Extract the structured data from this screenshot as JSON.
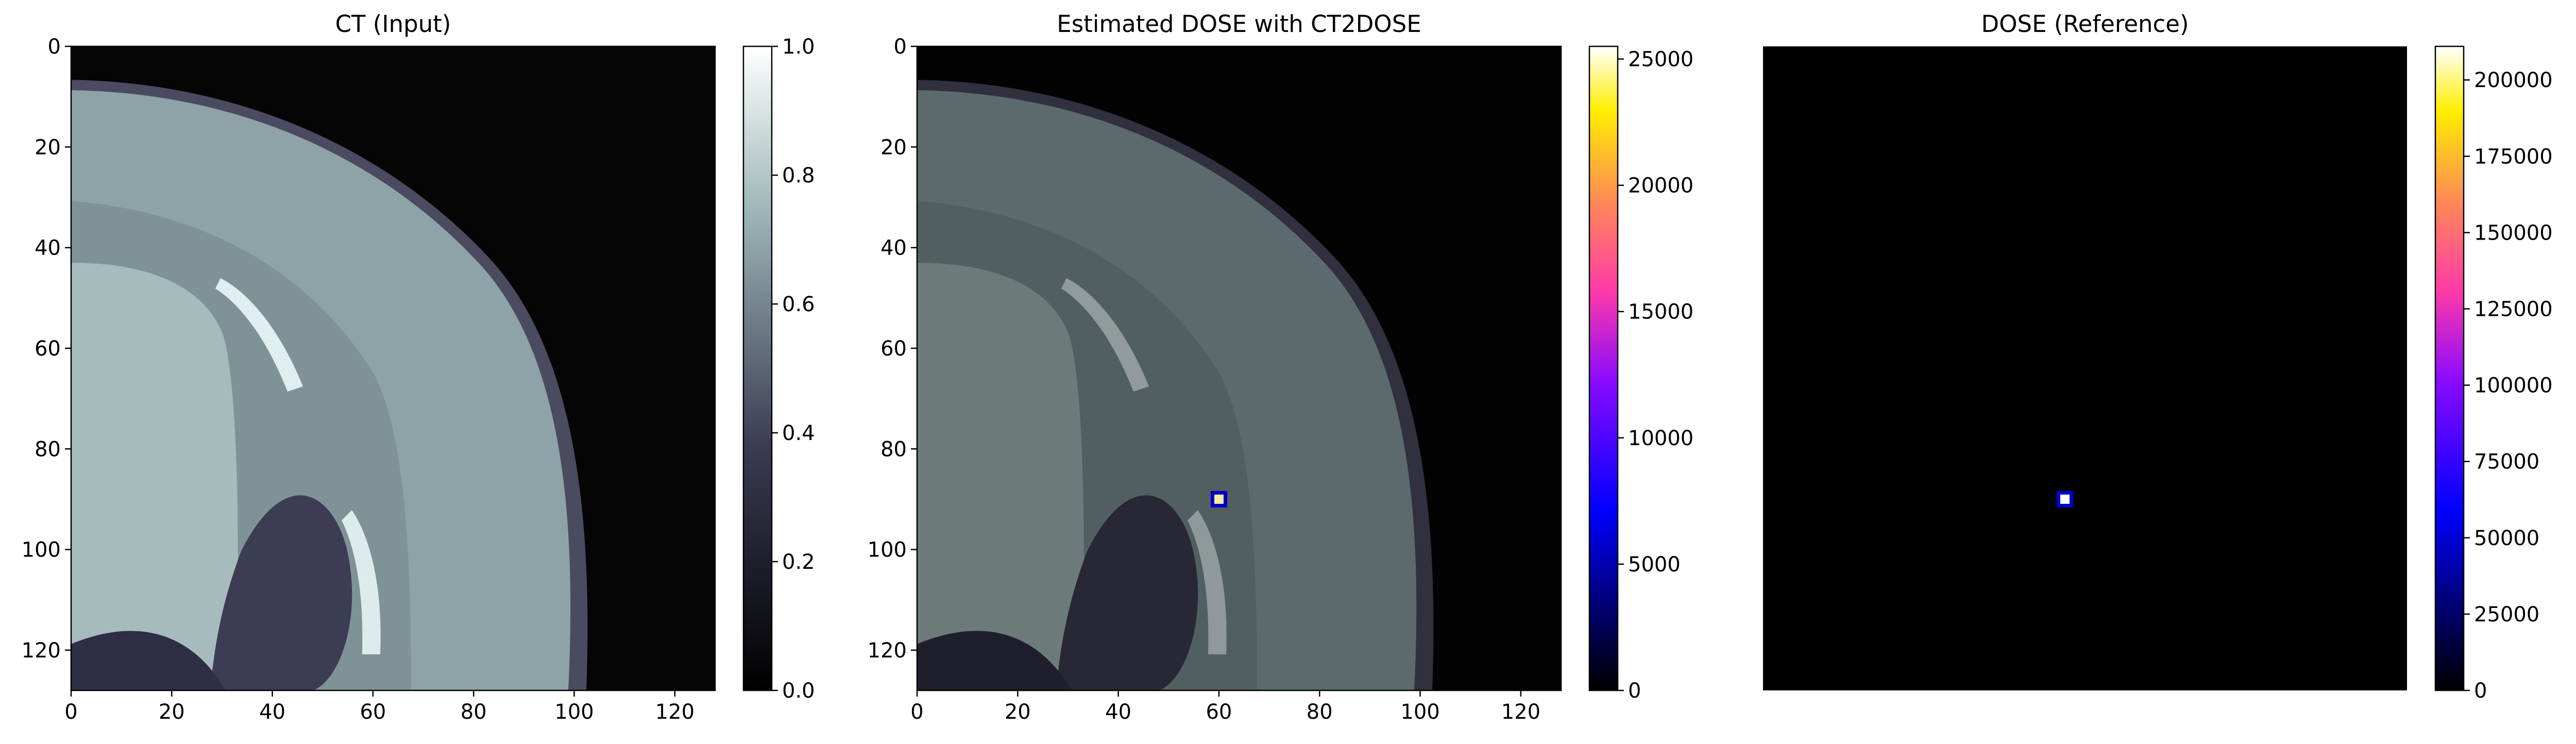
{
  "chart_data": [
    {
      "type": "heatmap",
      "title": "CT (Input)",
      "xlim": [
        0,
        128
      ],
      "ylim": [
        128,
        0
      ],
      "x_ticks": [
        "0",
        "20",
        "40",
        "60",
        "80",
        "100",
        "120"
      ],
      "y_ticks": [
        "0",
        "20",
        "40",
        "60",
        "80",
        "100",
        "120"
      ],
      "colormap": "bone",
      "colorbar": {
        "range": [
          0.0,
          1.0
        ],
        "ticks": [
          "0.0",
          "0.2",
          "0.4",
          "0.6",
          "0.8",
          "1.0"
        ],
        "tick_values": [
          0.0,
          0.2,
          0.4,
          0.6,
          0.8,
          1.0
        ]
      }
    },
    {
      "type": "heatmap",
      "title": "Estimated DOSE with CT2DOSE",
      "xlim": [
        0,
        128
      ],
      "ylim": [
        128,
        0
      ],
      "x_ticks": [
        "0",
        "20",
        "40",
        "60",
        "80",
        "100",
        "120"
      ],
      "y_ticks": [
        "0",
        "20",
        "40",
        "60",
        "80",
        "100",
        "120"
      ],
      "colormap": "gnuplot2 overlay on bone",
      "hotspot": {
        "x": 60,
        "y": 90
      },
      "colorbar": {
        "range": [
          0,
          25500
        ],
        "ticks": [
          "0",
          "5000",
          "10000",
          "15000",
          "20000",
          "25000"
        ],
        "tick_values": [
          0,
          5000,
          10000,
          15000,
          20000,
          25000
        ]
      }
    },
    {
      "type": "heatmap",
      "title": "DOSE (Reference)",
      "xlim": [
        0,
        128
      ],
      "ylim": [
        128,
        0
      ],
      "colormap": "gnuplot2",
      "hotspot": {
        "x": 60,
        "y": 90
      },
      "colorbar": {
        "range": [
          0,
          211000
        ],
        "ticks": [
          "0",
          "25000",
          "50000",
          "75000",
          "100000",
          "125000",
          "150000",
          "175000",
          "200000"
        ],
        "tick_values": [
          0,
          25000,
          50000,
          75000,
          100000,
          125000,
          150000,
          175000,
          200000
        ]
      }
    }
  ]
}
